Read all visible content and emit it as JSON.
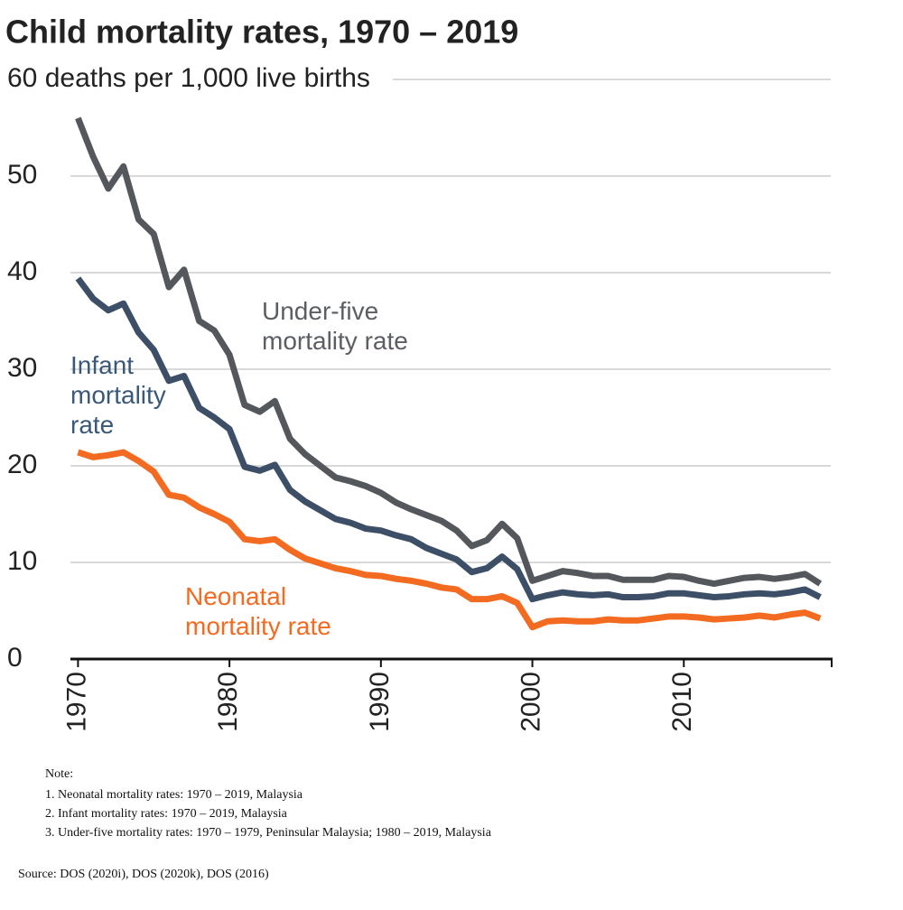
{
  "chart_data": {
    "type": "line",
    "title": "Child mortality rates, 1970 – 2019",
    "x": [
      1970,
      1971,
      1972,
      1973,
      1974,
      1975,
      1976,
      1977,
      1978,
      1979,
      1980,
      1981,
      1982,
      1983,
      1984,
      1985,
      1986,
      1987,
      1988,
      1989,
      1990,
      1991,
      1992,
      1993,
      1994,
      1995,
      1996,
      1997,
      1998,
      1999,
      2000,
      2001,
      2002,
      2003,
      2004,
      2005,
      2006,
      2007,
      2008,
      2009,
      2010,
      2011,
      2012,
      2013,
      2014,
      2015,
      2016,
      2017,
      2018,
      2019
    ],
    "series": [
      {
        "name": "Under-five mortality rate",
        "color": "#54585d",
        "values": [
          56,
          52,
          48.7,
          51,
          45.5,
          44,
          38.5,
          40.3,
          35,
          34,
          31.5,
          26.3,
          25.6,
          26.7,
          22.8,
          21.2,
          20,
          18.8,
          18.4,
          17.9,
          17.2,
          16.2,
          15.5,
          14.9,
          14.3,
          13.3,
          11.7,
          12.3,
          14,
          12.5,
          8.1,
          8.6,
          9.1,
          8.9,
          8.6,
          8.6,
          8.2,
          8.2,
          8.2,
          8.6,
          8.5,
          8.1,
          7.8,
          8.1,
          8.4,
          8.5,
          8.3,
          8.5,
          8.8,
          7.8
        ]
      },
      {
        "name": "Infant mortality rate",
        "color": "#3d4f66",
        "values": [
          39.4,
          37.3,
          36.1,
          36.8,
          33.8,
          32,
          28.8,
          29.3,
          26,
          25,
          23.8,
          19.9,
          19.5,
          20.1,
          17.5,
          16.3,
          15.4,
          14.5,
          14.1,
          13.5,
          13.3,
          12.8,
          12.4,
          11.5,
          10.9,
          10.3,
          9,
          9.4,
          10.6,
          9.3,
          6.2,
          6.6,
          6.9,
          6.7,
          6.6,
          6.7,
          6.4,
          6.4,
          6.5,
          6.8,
          6.8,
          6.6,
          6.4,
          6.5,
          6.7,
          6.8,
          6.7,
          6.9,
          7.2,
          6.4
        ]
      },
      {
        "name": "Neonatal mortality rate",
        "color": "#f26b21",
        "values": [
          21.4,
          20.9,
          21.1,
          21.4,
          20.5,
          19.4,
          17,
          16.7,
          15.7,
          15,
          14.2,
          12.4,
          12.2,
          12.4,
          11.3,
          10.4,
          9.9,
          9.4,
          9.1,
          8.7,
          8.6,
          8.3,
          8.1,
          7.8,
          7.4,
          7.2,
          6.2,
          6.2,
          6.5,
          5.8,
          3.3,
          3.9,
          4,
          3.9,
          3.9,
          4.1,
          4,
          4,
          4.2,
          4.4,
          4.4,
          4.3,
          4.1,
          4.2,
          4.3,
          4.5,
          4.3,
          4.6,
          4.8,
          4.2
        ]
      }
    ],
    "xlim": [
      1969.5,
      2020
    ],
    "xticks": [
      1970,
      1980,
      1990,
      2000,
      2010
    ],
    "ylim": [
      0,
      60
    ],
    "yticks": [
      0,
      10,
      20,
      30,
      40,
      50,
      {
        "value": 60,
        "label": "60 deaths per 1,000 live births"
      }
    ],
    "grid": true,
    "note_title": "Note:",
    "notes": [
      "1. Neonatal mortality rates: 1970 – 2019, Malaysia",
      "2. Infant mortality rates: 1970 – 2019, Malaysia",
      "3. Under-five mortality rates: 1970 – 1979, Peninsular Malaysia;  1980 – 2019, Malaysia"
    ],
    "source": "Source: DOS (2020i), DOS (2020k), DOS (2016)"
  }
}
